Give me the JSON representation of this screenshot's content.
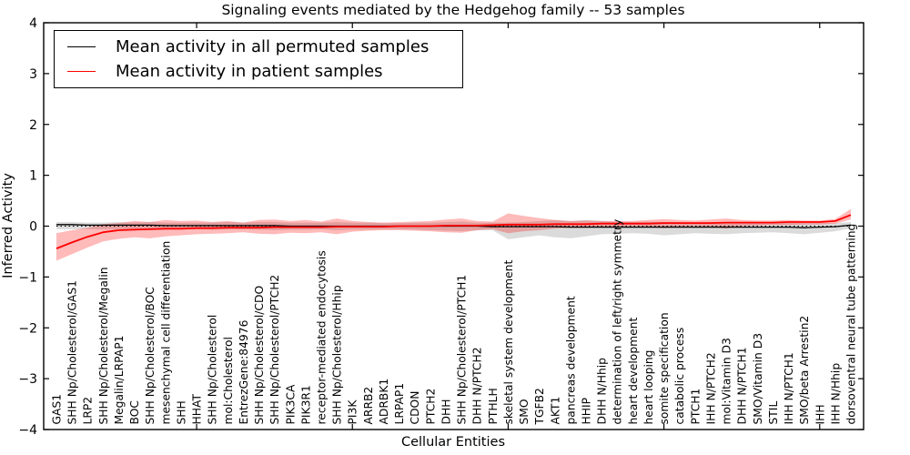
{
  "title": "Signaling events mediated by the Hedgehog family -- 53 samples",
  "legend": [
    {
      "label": "Mean activity in all permuted samples",
      "color": "#000000"
    },
    {
      "label": "Mean activity in patient samples",
      "color": "#ff0000"
    }
  ],
  "chart_data": {
    "type": "line",
    "title": "Signaling events mediated by the Hedgehog family -- 53 samples",
    "xlabel": "Cellular Entities",
    "ylabel": "Inferred Activity",
    "ylim": [
      -4,
      4
    ],
    "yticks": [
      -4,
      -3,
      -2,
      -1,
      0,
      1,
      2,
      3,
      4
    ],
    "x_major_tick_indices": [
      9,
      19,
      29,
      39,
      49
    ],
    "grid": false,
    "legend_position": "upper left",
    "reference_line_y": 0,
    "categories": [
      "GAS1",
      "SHH Np/Cholesterol/GAS1",
      "LRP2",
      "SHH Np/Cholesterol/Megalin",
      "Megalin/LRPAP1",
      "BOC",
      "SHH Np/Cholesterol/BOC",
      "mesenchymal cell differentiation",
      "SHH",
      "HHAT",
      "SHH Np/Cholesterol",
      "mol:Cholesterol",
      "EntrezGene:84976",
      "SHH Np/Cholesterol/CDO",
      "SHH Np/Cholesterol/PTCH2",
      "PIK3CA",
      "PIK3R1",
      "receptor-mediated endocytosis",
      "SHH Np/Cholesterol/Hhip",
      "PI3K",
      "ARRB2",
      "ADRBK1",
      "LRPAP1",
      "CDON",
      "PTCH2",
      "DHH",
      "SHH Np/Cholesterol/PTCH1",
      "DHH N/PTCH2",
      "PTHLH",
      "skeletal system development",
      "SMO",
      "TGFB2",
      "AKT1",
      "pancreas development",
      "HHIP",
      "DHH N/Hhip",
      "determination of left/right symmetry",
      "heart development",
      "heart looping",
      "somite specification",
      "catabolic process",
      "PTCH1",
      "IHH N/PTCH2",
      "mol:Vitamin D3",
      "DHH N/PTCH1",
      "SMO/Vitamin D3",
      "STIL",
      "IHH N/PTCH1",
      "SMO/beta Arrestin2",
      "IHH",
      "IHH N/Hhip",
      "dorsoventral neural tube patterning"
    ],
    "series": [
      {
        "name": "Mean activity in all permuted samples",
        "color": "#000000",
        "line_width": 1.3,
        "band_color": "#000000",
        "band_opacity": 0.14,
        "values": [
          0.03,
          0.03,
          0.02,
          0.02,
          0.02,
          0.02,
          0.02,
          0.01,
          0.01,
          0.01,
          0.01,
          0.01,
          0.01,
          0.01,
          0.01,
          0.0,
          0.0,
          0.0,
          0.0,
          0.0,
          0.0,
          0.0,
          0.0,
          0.0,
          0.0,
          0.0,
          0.0,
          0.0,
          -0.01,
          -0.01,
          -0.01,
          -0.01,
          -0.01,
          -0.02,
          -0.02,
          -0.02,
          -0.02,
          -0.02,
          -0.02,
          -0.02,
          -0.02,
          -0.02,
          -0.02,
          -0.02,
          -0.02,
          -0.02,
          -0.02,
          -0.02,
          -0.03,
          -0.02,
          -0.01,
          0.02
        ],
        "band_upper": [
          0.08,
          0.08,
          0.07,
          0.07,
          0.08,
          0.07,
          0.08,
          0.07,
          0.07,
          0.07,
          0.07,
          0.08,
          0.07,
          0.08,
          0.08,
          0.07,
          0.07,
          0.07,
          0.08,
          0.07,
          0.07,
          0.06,
          0.06,
          0.07,
          0.07,
          0.08,
          0.09,
          0.07,
          0.07,
          0.07,
          0.08,
          0.1,
          0.12,
          0.1,
          0.12,
          0.1,
          0.08,
          0.08,
          0.09,
          0.08,
          0.08,
          0.07,
          0.08,
          0.07,
          0.07,
          0.07,
          0.06,
          0.07,
          0.06,
          0.06,
          0.06,
          0.08
        ],
        "band_lower": [
          -0.06,
          -0.06,
          -0.06,
          -0.06,
          -0.06,
          -0.06,
          -0.07,
          -0.06,
          -0.06,
          -0.06,
          -0.07,
          -0.06,
          -0.06,
          -0.07,
          -0.08,
          -0.07,
          -0.07,
          -0.06,
          -0.08,
          -0.07,
          -0.07,
          -0.06,
          -0.06,
          -0.07,
          -0.08,
          -0.09,
          -0.1,
          -0.08,
          -0.08,
          -0.26,
          -0.22,
          -0.18,
          -0.22,
          -0.24,
          -0.2,
          -0.16,
          -0.15,
          -0.14,
          -0.15,
          -0.18,
          -0.16,
          -0.14,
          -0.15,
          -0.16,
          -0.14,
          -0.13,
          -0.12,
          -0.14,
          -0.16,
          -0.13,
          -0.1,
          -0.04
        ]
      },
      {
        "name": "Mean activity in patient samples",
        "color": "#ff0000",
        "line_width": 1.8,
        "band_color": "#ff0000",
        "band_opacity": 0.27,
        "values": [
          -0.44,
          -0.32,
          -0.21,
          -0.12,
          -0.08,
          -0.07,
          -0.06,
          -0.05,
          -0.05,
          -0.04,
          -0.04,
          -0.03,
          -0.03,
          -0.03,
          -0.02,
          -0.02,
          -0.02,
          -0.02,
          -0.01,
          -0.01,
          -0.01,
          -0.01,
          0.0,
          0.0,
          0.0,
          0.01,
          0.01,
          0.01,
          0.02,
          0.03,
          0.03,
          0.03,
          0.04,
          0.04,
          0.04,
          0.05,
          0.05,
          0.05,
          0.05,
          0.06,
          0.06,
          0.06,
          0.06,
          0.07,
          0.07,
          0.07,
          0.07,
          0.08,
          0.08,
          0.08,
          0.1,
          0.22
        ],
        "band_upper": [
          -0.14,
          -0.08,
          -0.03,
          0.04,
          0.06,
          0.1,
          0.08,
          0.12,
          0.1,
          0.11,
          0.08,
          0.1,
          0.07,
          0.12,
          0.13,
          0.1,
          0.12,
          0.09,
          0.15,
          0.1,
          0.08,
          0.07,
          0.08,
          0.09,
          0.1,
          0.13,
          0.15,
          0.1,
          0.09,
          0.25,
          0.2,
          0.16,
          0.12,
          0.1,
          0.11,
          0.1,
          0.1,
          0.1,
          0.12,
          0.14,
          0.12,
          0.11,
          0.13,
          0.15,
          0.12,
          0.11,
          0.11,
          0.12,
          0.11,
          0.11,
          0.14,
          0.34
        ],
        "band_lower": [
          -0.68,
          -0.55,
          -0.42,
          -0.3,
          -0.25,
          -0.22,
          -0.24,
          -0.2,
          -0.18,
          -0.16,
          -0.15,
          -0.14,
          -0.12,
          -0.15,
          -0.16,
          -0.13,
          -0.14,
          -0.12,
          -0.16,
          -0.11,
          -0.09,
          -0.08,
          -0.08,
          -0.09,
          -0.1,
          -0.12,
          -0.13,
          -0.08,
          -0.06,
          -0.14,
          -0.1,
          -0.08,
          -0.05,
          -0.03,
          -0.03,
          -0.02,
          -0.01,
          0.0,
          -0.01,
          -0.04,
          -0.02,
          0.0,
          -0.02,
          -0.05,
          0.0,
          0.01,
          0.02,
          0.02,
          0.03,
          0.03,
          0.05,
          0.13
        ]
      }
    ]
  }
}
